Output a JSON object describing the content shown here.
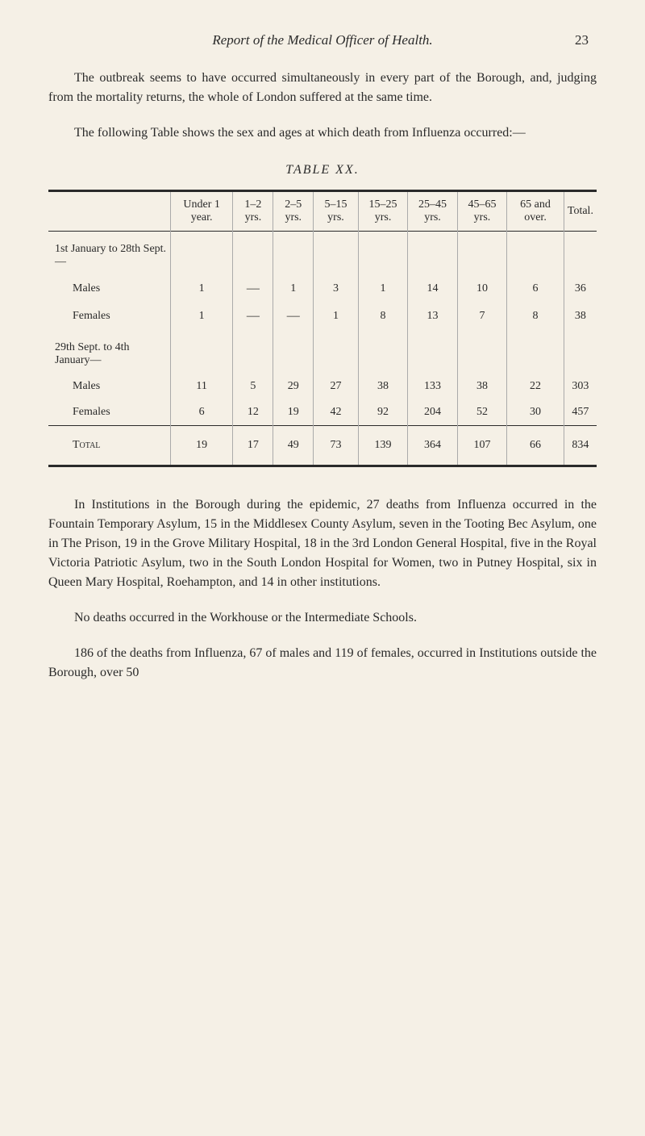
{
  "header": {
    "title": "Report of the Medical Officer of Health.",
    "page_number": "23"
  },
  "paragraphs": {
    "p1": "The outbreak seems to have occurred simultaneously in every part of the Borough, and, judging from the mortality returns, the whole of London suffered at the same time.",
    "p2": "The following Table shows the sex and ages at which death from Influenza occurred:—",
    "p3": "In Institutions in the Borough during the epidemic, 27 deaths from Influenza occurred in the Fountain Temporary Asylum, 15 in the Middlesex County Asylum, seven in the Tooting Bec Asylum, one in The Prison, 19 in the Grove Military Hospital, 18 in the 3rd London General Hospital, five in the Royal Victoria Patriotic Asylum, two in the South London Hospital for Women, two in Putney Hospital, six in Queen Mary Hospital, Roehampton, and 14 in other institutions.",
    "p4": "No deaths occurred in the Workhouse or the Intermediate Schools.",
    "p5": "186 of the deaths from Influenza, 67 of males and 119 of females, occurred in Institutions outside the Borough, over 50"
  },
  "table": {
    "title": "TABLE XX.",
    "columns": [
      "",
      "Under 1 year.",
      "1–2 yrs.",
      "2–5 yrs.",
      "5–15 yrs.",
      "15–25 yrs.",
      "25–45 yrs.",
      "45–65 yrs.",
      "65 and over.",
      "Total."
    ],
    "group1_label": "1st January to 28th Sept.—",
    "group1_rows": [
      {
        "label": "Males",
        "cells": [
          "1",
          "—",
          "1",
          "3",
          "1",
          "14",
          "10",
          "6",
          "36"
        ]
      },
      {
        "label": "Females",
        "cells": [
          "1",
          "—",
          "—",
          "1",
          "8",
          "13",
          "7",
          "8",
          "38"
        ]
      }
    ],
    "group2_label": "29th Sept. to 4th January—",
    "group2_rows": [
      {
        "label": "Males",
        "cells": [
          "11",
          "5",
          "29",
          "27",
          "38",
          "133",
          "38",
          "22",
          "303"
        ]
      },
      {
        "label": "Females",
        "cells": [
          "6",
          "12",
          "19",
          "42",
          "92",
          "204",
          "52",
          "30",
          "457"
        ]
      }
    ],
    "total_row": {
      "label": "Total",
      "cells": [
        "19",
        "17",
        "49",
        "73",
        "139",
        "364",
        "107",
        "66",
        "834"
      ]
    }
  },
  "styling": {
    "background_color": "#f5f0e6",
    "text_color": "#2a2a2a",
    "border_color": "#2a2a2a",
    "cell_border_color": "#aaa",
    "body_fontsize": 16,
    "table_fontsize": 14,
    "title_fontsize": 17,
    "font_family": "Georgia, serif"
  }
}
